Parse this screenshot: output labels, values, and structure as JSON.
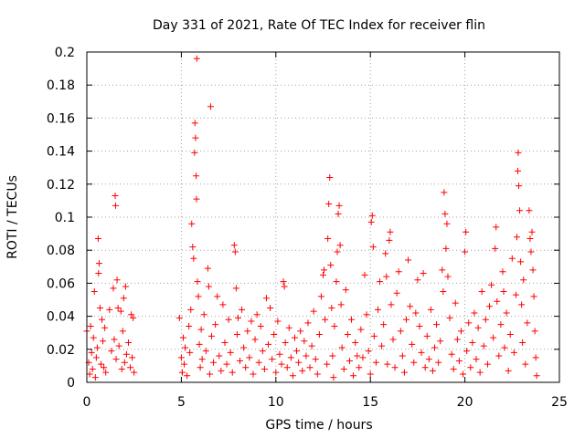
{
  "chart_data": {
    "type": "scatter",
    "title": "Day 331 of 2021, Rate Of TEC Index for receiver flin",
    "xlabel": "GPS time / hours",
    "ylabel": "ROTI / TECUs",
    "xlim": [
      0,
      25
    ],
    "ylim": [
      0,
      0.2
    ],
    "xticks": [
      0,
      5,
      10,
      15,
      20,
      25
    ],
    "xtick_labels": [
      "0",
      "5",
      "10",
      "15",
      "20",
      "25"
    ],
    "yticks": [
      0,
      0.02,
      0.04,
      0.06,
      0.08,
      0.1,
      0.12,
      0.14,
      0.16,
      0.18,
      0.2
    ],
    "ytick_labels": [
      "0",
      "0.02",
      "0.04",
      "0.06",
      "0.08",
      "0.1",
      "0.12",
      "0.14",
      "0.16",
      "0.18",
      "0.2"
    ],
    "grid": true,
    "marker": "+",
    "color": "#ff0000",
    "series": [
      {
        "name": "ROTI",
        "points": [
          [
            0.0,
            0.031
          ],
          [
            0.1,
            0.012
          ],
          [
            0.15,
            0.005
          ],
          [
            0.2,
            0.034
          ],
          [
            0.25,
            0.018
          ],
          [
            0.3,
            0.008
          ],
          [
            0.35,
            0.027
          ],
          [
            0.4,
            0.055
          ],
          [
            0.45,
            0.003
          ],
          [
            0.5,
            0.015
          ],
          [
            0.55,
            0.021
          ],
          [
            0.6,
            0.087
          ],
          [
            0.62,
            0.066
          ],
          [
            0.65,
            0.072
          ],
          [
            0.7,
            0.045
          ],
          [
            0.75,
            0.011
          ],
          [
            0.8,
            0.038
          ],
          [
            0.85,
            0.025
          ],
          [
            0.9,
            0.009
          ],
          [
            0.95,
            0.033
          ],
          [
            1.0,
            0.006
          ],
          [
            1.2,
            0.044
          ],
          [
            1.3,
            0.019
          ],
          [
            1.4,
            0.057
          ],
          [
            1.45,
            0.026
          ],
          [
            1.5,
            0.113
          ],
          [
            1.52,
            0.107
          ],
          [
            1.55,
            0.014
          ],
          [
            1.6,
            0.062
          ],
          [
            1.65,
            0.045
          ],
          [
            1.7,
            0.022
          ],
          [
            1.8,
            0.043
          ],
          [
            1.85,
            0.008
          ],
          [
            1.9,
            0.031
          ],
          [
            1.95,
            0.051
          ],
          [
            2.0,
            0.012
          ],
          [
            2.05,
            0.058
          ],
          [
            2.1,
            0.017
          ],
          [
            2.2,
            0.024
          ],
          [
            2.3,
            0.009
          ],
          [
            2.35,
            0.041
          ],
          [
            2.4,
            0.015
          ],
          [
            2.45,
            0.039
          ],
          [
            2.5,
            0.006
          ],
          [
            4.9,
            0.039
          ],
          [
            5.0,
            0.015
          ],
          [
            5.05,
            0.006
          ],
          [
            5.1,
            0.027
          ],
          [
            5.15,
            0.011
          ],
          [
            5.2,
            0.021
          ],
          [
            5.3,
            0.004
          ],
          [
            5.4,
            0.034
          ],
          [
            5.45,
            0.018
          ],
          [
            5.5,
            0.044
          ],
          [
            5.55,
            0.096
          ],
          [
            5.6,
            0.082
          ],
          [
            5.65,
            0.075
          ],
          [
            5.7,
            0.139
          ],
          [
            5.72,
            0.157
          ],
          [
            5.75,
            0.148
          ],
          [
            5.78,
            0.125
          ],
          [
            5.8,
            0.111
          ],
          [
            5.82,
            0.196
          ],
          [
            5.85,
            0.061
          ],
          [
            5.9,
            0.052
          ],
          [
            5.95,
            0.023
          ],
          [
            6.0,
            0.009
          ],
          [
            6.05,
            0.032
          ],
          [
            6.1,
            0.014
          ],
          [
            6.2,
            0.041
          ],
          [
            6.3,
            0.019
          ],
          [
            6.4,
            0.069
          ],
          [
            6.45,
            0.058
          ],
          [
            6.5,
            0.005
          ],
          [
            6.55,
            0.167
          ],
          [
            6.6,
            0.028
          ],
          [
            6.7,
            0.012
          ],
          [
            6.8,
            0.035
          ],
          [
            6.9,
            0.052
          ],
          [
            7.0,
            0.016
          ],
          [
            7.1,
            0.007
          ],
          [
            7.2,
            0.047
          ],
          [
            7.3,
            0.024
          ],
          [
            7.4,
            0.011
          ],
          [
            7.5,
            0.038
          ],
          [
            7.6,
            0.018
          ],
          [
            7.7,
            0.006
          ],
          [
            7.8,
            0.083
          ],
          [
            7.85,
            0.079
          ],
          [
            7.9,
            0.057
          ],
          [
            7.95,
            0.029
          ],
          [
            8.0,
            0.039
          ],
          [
            8.1,
            0.013
          ],
          [
            8.2,
            0.044
          ],
          [
            8.3,
            0.021
          ],
          [
            8.4,
            0.009
          ],
          [
            8.5,
            0.031
          ],
          [
            8.6,
            0.015
          ],
          [
            8.7,
            0.037
          ],
          [
            8.8,
            0.005
          ],
          [
            8.9,
            0.026
          ],
          [
            9.0,
            0.041
          ],
          [
            9.1,
            0.012
          ],
          [
            9.2,
            0.034
          ],
          [
            9.3,
            0.019
          ],
          [
            9.4,
            0.008
          ],
          [
            9.5,
            0.051
          ],
          [
            9.6,
            0.023
          ],
          [
            9.7,
            0.045
          ],
          [
            9.8,
            0.014
          ],
          [
            9.9,
            0.029
          ],
          [
            10.0,
            0.006
          ],
          [
            10.1,
            0.037
          ],
          [
            10.2,
            0.017
          ],
          [
            10.3,
            0.011
          ],
          [
            10.4,
            0.061
          ],
          [
            10.45,
            0.058
          ],
          [
            10.5,
            0.024
          ],
          [
            10.6,
            0.009
          ],
          [
            10.7,
            0.033
          ],
          [
            10.8,
            0.015
          ],
          [
            10.9,
            0.004
          ],
          [
            11.0,
            0.027
          ],
          [
            11.1,
            0.019
          ],
          [
            11.2,
            0.012
          ],
          [
            11.3,
            0.031
          ],
          [
            11.4,
            0.007
          ],
          [
            11.5,
            0.025
          ],
          [
            11.6,
            0.016
          ],
          [
            11.7,
            0.036
          ],
          [
            11.8,
            0.009
          ],
          [
            11.9,
            0.022
          ],
          [
            12.0,
            0.043
          ],
          [
            12.1,
            0.014
          ],
          [
            12.2,
            0.005
          ],
          [
            12.3,
            0.029
          ],
          [
            12.4,
            0.052
          ],
          [
            12.5,
            0.065
          ],
          [
            12.55,
            0.068
          ],
          [
            12.6,
            0.038
          ],
          [
            12.7,
            0.011
          ],
          [
            12.75,
            0.087
          ],
          [
            12.8,
            0.108
          ],
          [
            12.85,
            0.124
          ],
          [
            12.9,
            0.071
          ],
          [
            12.95,
            0.045
          ],
          [
            13.0,
            0.016
          ],
          [
            13.05,
            0.003
          ],
          [
            13.1,
            0.034
          ],
          [
            13.2,
            0.061
          ],
          [
            13.25,
            0.079
          ],
          [
            13.3,
            0.102
          ],
          [
            13.35,
            0.107
          ],
          [
            13.4,
            0.083
          ],
          [
            13.45,
            0.047
          ],
          [
            13.5,
            0.021
          ],
          [
            13.6,
            0.008
          ],
          [
            13.7,
            0.056
          ],
          [
            13.8,
            0.029
          ],
          [
            13.9,
            0.013
          ],
          [
            14.0,
            0.038
          ],
          [
            14.1,
            0.004
          ],
          [
            14.2,
            0.024
          ],
          [
            14.3,
            0.016
          ],
          [
            14.4,
            0.009
          ],
          [
            14.5,
            0.032
          ],
          [
            14.6,
            0.015
          ],
          [
            14.7,
            0.065
          ],
          [
            14.8,
            0.041
          ],
          [
            14.9,
            0.019
          ],
          [
            15.0,
            0.005
          ],
          [
            15.05,
            0.097
          ],
          [
            15.1,
            0.101
          ],
          [
            15.15,
            0.082
          ],
          [
            15.2,
            0.028
          ],
          [
            15.3,
            0.012
          ],
          [
            15.4,
            0.044
          ],
          [
            15.5,
            0.061
          ],
          [
            15.6,
            0.022
          ],
          [
            15.7,
            0.035
          ],
          [
            15.8,
            0.078
          ],
          [
            15.85,
            0.064
          ],
          [
            15.9,
            0.011
          ],
          [
            16.0,
            0.086
          ],
          [
            16.05,
            0.091
          ],
          [
            16.1,
            0.047
          ],
          [
            16.2,
            0.026
          ],
          [
            16.3,
            0.009
          ],
          [
            16.4,
            0.054
          ],
          [
            16.5,
            0.067
          ],
          [
            16.6,
            0.031
          ],
          [
            16.7,
            0.016
          ],
          [
            16.8,
            0.006
          ],
          [
            16.9,
            0.038
          ],
          [
            17.0,
            0.074
          ],
          [
            17.1,
            0.046
          ],
          [
            17.2,
            0.023
          ],
          [
            17.3,
            0.012
          ],
          [
            17.4,
            0.042
          ],
          [
            17.5,
            0.062
          ],
          [
            17.6,
            0.034
          ],
          [
            17.7,
            0.018
          ],
          [
            17.8,
            0.066
          ],
          [
            17.9,
            0.009
          ],
          [
            18.0,
            0.028
          ],
          [
            18.1,
            0.014
          ],
          [
            18.2,
            0.044
          ],
          [
            18.3,
            0.007
          ],
          [
            18.4,
            0.021
          ],
          [
            18.5,
            0.035
          ],
          [
            18.6,
            0.012
          ],
          [
            18.7,
            0.025
          ],
          [
            18.8,
            0.068
          ],
          [
            18.85,
            0.055
          ],
          [
            18.9,
            0.115
          ],
          [
            18.95,
            0.102
          ],
          [
            19.0,
            0.081
          ],
          [
            19.05,
            0.096
          ],
          [
            19.1,
            0.064
          ],
          [
            19.2,
            0.039
          ],
          [
            19.3,
            0.017
          ],
          [
            19.4,
            0.008
          ],
          [
            19.5,
            0.048
          ],
          [
            19.6,
            0.026
          ],
          [
            19.7,
            0.013
          ],
          [
            19.8,
            0.031
          ],
          [
            19.9,
            0.005
          ],
          [
            20.0,
            0.079
          ],
          [
            20.05,
            0.091
          ],
          [
            20.1,
            0.019
          ],
          [
            20.2,
            0.036
          ],
          [
            20.3,
            0.009
          ],
          [
            20.4,
            0.024
          ],
          [
            20.5,
            0.042
          ],
          [
            20.6,
            0.014
          ],
          [
            20.7,
            0.033
          ],
          [
            20.8,
            0.006
          ],
          [
            20.9,
            0.055
          ],
          [
            21.0,
            0.022
          ],
          [
            21.1,
            0.038
          ],
          [
            21.2,
            0.011
          ],
          [
            21.3,
            0.046
          ],
          [
            21.4,
            0.059
          ],
          [
            21.5,
            0.027
          ],
          [
            21.6,
            0.081
          ],
          [
            21.65,
            0.094
          ],
          [
            21.7,
            0.049
          ],
          [
            21.8,
            0.016
          ],
          [
            21.9,
            0.035
          ],
          [
            22.0,
            0.067
          ],
          [
            22.05,
            0.055
          ],
          [
            22.1,
            0.021
          ],
          [
            22.2,
            0.042
          ],
          [
            22.3,
            0.007
          ],
          [
            22.4,
            0.029
          ],
          [
            22.5,
            0.075
          ],
          [
            22.6,
            0.018
          ],
          [
            22.7,
            0.053
          ],
          [
            22.75,
            0.088
          ],
          [
            22.8,
            0.128
          ],
          [
            22.82,
            0.139
          ],
          [
            22.85,
            0.119
          ],
          [
            22.9,
            0.104
          ],
          [
            22.95,
            0.073
          ],
          [
            23.0,
            0.047
          ],
          [
            23.05,
            0.024
          ],
          [
            23.1,
            0.062
          ],
          [
            23.2,
            0.011
          ],
          [
            23.3,
            0.036
          ],
          [
            23.4,
            0.104
          ],
          [
            23.45,
            0.087
          ],
          [
            23.5,
            0.079
          ],
          [
            23.55,
            0.091
          ],
          [
            23.6,
            0.068
          ],
          [
            23.65,
            0.052
          ],
          [
            23.7,
            0.031
          ],
          [
            23.75,
            0.015
          ],
          [
            23.8,
            0.004
          ]
        ]
      }
    ]
  }
}
